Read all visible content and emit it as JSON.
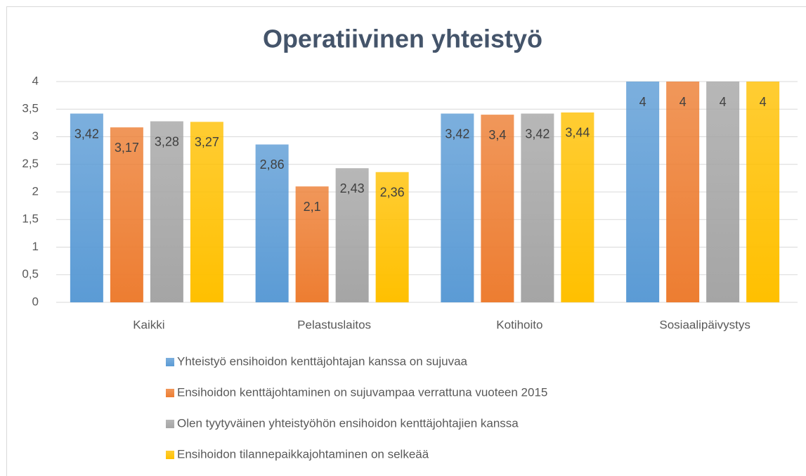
{
  "chart_data": {
    "type": "bar",
    "title": "Operatiivinen yhteistyö",
    "categories": [
      "Kaikki",
      "Pelastuslaitos",
      "Kotihoito",
      "Sosiaalipäivystys"
    ],
    "series": [
      {
        "name": "Yhteistyö ensihoidon kenttäjohtajan kanssa on sujuvaa",
        "color": "#5b9bd5",
        "values": [
          3.42,
          2.86,
          3.42,
          4
        ],
        "value_labels": [
          "3,42",
          "2,86",
          "3,42",
          "4"
        ]
      },
      {
        "name": "Ensihoidon kenttäjohtaminen on sujuvampaa verrattuna vuoteen 2015",
        "color": "#ed7d31",
        "values": [
          3.17,
          2.1,
          3.4,
          4
        ],
        "value_labels": [
          "3,17",
          "2,1",
          "3,4",
          "4"
        ]
      },
      {
        "name": "Olen tyytyväinen yhteistyöhön ensihoidon kenttäjohtajien kanssa",
        "color": "#a5a5a5",
        "values": [
          3.28,
          2.43,
          3.42,
          4
        ],
        "value_labels": [
          "3,28",
          "2,43",
          "3,42",
          "4"
        ]
      },
      {
        "name": "Ensihoidon tilannepaikkajohtaminen on selkeää",
        "color": "#ffc000",
        "values": [
          3.27,
          2.36,
          3.44,
          4
        ],
        "value_labels": [
          "3,27",
          "2,36",
          "3,44",
          "4"
        ]
      }
    ],
    "ylim": [
      0,
      4
    ],
    "yticks": [
      0,
      {
        "value": 0.5,
        "label": "0,5"
      },
      1,
      {
        "value": 1.5,
        "label": "1,5"
      },
      2,
      {
        "value": 2.5,
        "label": "2,5"
      },
      3,
      {
        "value": 3.5,
        "label": "3,5"
      },
      4
    ],
    "grid": true,
    "legend": "bottom"
  }
}
